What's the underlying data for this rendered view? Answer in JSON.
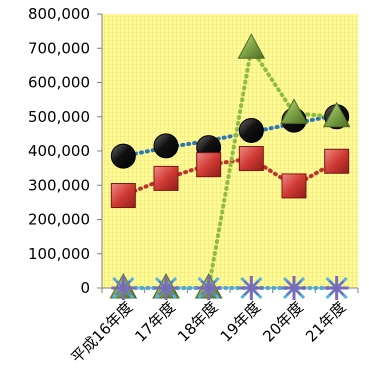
{
  "chart_data": {
    "type": "line",
    "categories": [
      "平成16年度",
      "17年度",
      "18年度",
      "19年度",
      "20年度",
      "21年度"
    ],
    "yticks": [
      "0",
      "100,000",
      "200,000",
      "300,000",
      "400,000",
      "500,000",
      "600,000",
      "700,000",
      "800,000"
    ],
    "ylim": [
      0,
      800000
    ],
    "grid": true,
    "series": [
      {
        "marker": "circle",
        "color": "#111111",
        "line_color": "#2e75b6",
        "values": [
          385000,
          415000,
          410000,
          460000,
          490000,
          500000
        ],
        "trend": [
          385000,
          410000,
          430000,
          455000,
          480000,
          505000
        ]
      },
      {
        "marker": "square",
        "color": "#c0322e",
        "line_color": "#c0322e",
        "values": [
          270000,
          320000,
          360000,
          378000,
          298000,
          370000
        ],
        "trend": [
          270000,
          320000,
          360000,
          378000,
          298000,
          370000
        ]
      },
      {
        "marker": "triangle",
        "color": "#7ea345",
        "line_color": "#8fbc45",
        "values": [
          0,
          0,
          0,
          700000,
          510000,
          500000
        ],
        "trend": [
          0,
          0,
          0,
          700000,
          510000,
          500000
        ]
      },
      {
        "marker": "star",
        "color": "#7a6ab8",
        "line_color": "#4fa7d8",
        "values": [
          0,
          0,
          0,
          0,
          0,
          0
        ],
        "trend": [
          0,
          0,
          0,
          0,
          0,
          0
        ]
      }
    ]
  }
}
